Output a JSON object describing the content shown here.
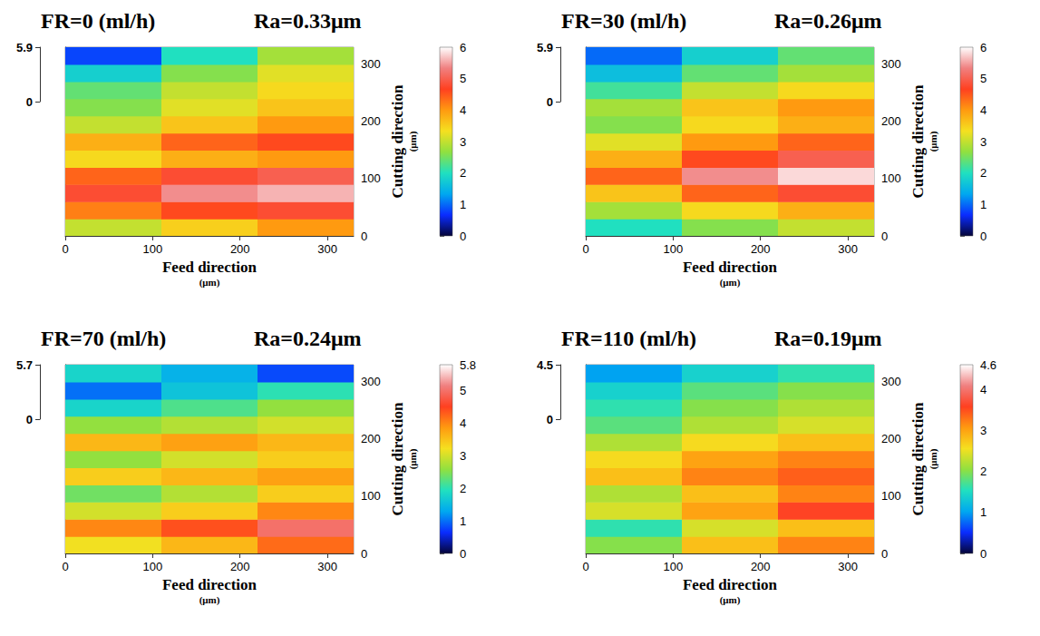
{
  "chart_data": [
    {
      "type": "heatmap",
      "title": "FR=0 (ml/h)",
      "subtitle": "Ra=0.33μm",
      "xlabel": "Feed direction",
      "xlabel_unit": "(μm)",
      "ylabel": "Cutting direction",
      "ylabel_unit": "(μm)",
      "xlim": [
        0,
        330
      ],
      "xticks": [
        0,
        100,
        200,
        300
      ],
      "ylim": [
        0,
        330
      ],
      "yticks": [
        0,
        100,
        200,
        300
      ],
      "x_bins": [
        0,
        110,
        220,
        330
      ],
      "y_bins": [
        0,
        30,
        60,
        90,
        120,
        150,
        180,
        210,
        240,
        270,
        300,
        330
      ],
      "values": [
        [
          3.0,
          3.5,
          4.0
        ],
        [
          4.2,
          4.6,
          4.8
        ],
        [
          4.8,
          5.4,
          5.6
        ],
        [
          4.4,
          4.8,
          5.0
        ],
        [
          3.4,
          3.8,
          4.0
        ],
        [
          3.8,
          4.4,
          4.6
        ],
        [
          3.0,
          3.6,
          4.0
        ],
        [
          2.6,
          3.2,
          3.6
        ],
        [
          2.4,
          3.0,
          3.4
        ],
        [
          1.8,
          2.6,
          3.2
        ],
        [
          0.8,
          2.0,
          2.8
        ]
      ],
      "zlim": [
        0,
        5.9
      ],
      "zticks": [
        0,
        5.9
      ],
      "colorbar_lim": [
        0,
        6
      ],
      "colorbar_ticks": [
        0,
        1,
        2,
        3,
        4,
        5,
        6
      ]
    },
    {
      "type": "heatmap",
      "title": "FR=30 (ml/h)",
      "subtitle": "Ra=0.26μm",
      "xlabel": "Feed direction",
      "xlabel_unit": "(μm)",
      "ylabel": "Cutting direction",
      "ylabel_unit": "(μm)",
      "xlim": [
        0,
        330
      ],
      "xticks": [
        0,
        100,
        200,
        300
      ],
      "ylim": [
        0,
        330
      ],
      "yticks": [
        0,
        100,
        200,
        300
      ],
      "x_bins": [
        0,
        110,
        220,
        330
      ],
      "y_bins": [
        0,
        30,
        60,
        90,
        120,
        150,
        180,
        210,
        240,
        270,
        300,
        330
      ],
      "values": [
        [
          2.0,
          2.6,
          3.0
        ],
        [
          2.8,
          3.4,
          3.8
        ],
        [
          3.6,
          4.4,
          4.8
        ],
        [
          4.4,
          5.4,
          5.8
        ],
        [
          3.8,
          4.6,
          5.0
        ],
        [
          3.2,
          4.0,
          4.4
        ],
        [
          2.6,
          3.4,
          3.8
        ],
        [
          2.8,
          3.6,
          4.0
        ],
        [
          2.2,
          3.0,
          3.4
        ],
        [
          1.6,
          2.4,
          2.8
        ],
        [
          1.0,
          1.8,
          2.4
        ]
      ],
      "zlim": [
        0,
        5.9
      ],
      "zticks": [
        0,
        5.9
      ],
      "colorbar_lim": [
        0,
        6
      ],
      "colorbar_ticks": [
        0,
        1,
        2,
        3,
        4,
        5,
        6
      ]
    },
    {
      "type": "heatmap",
      "title": "FR=70 (ml/h)",
      "subtitle": "Ra=0.24μm",
      "xlabel": "Feed direction",
      "xlabel_unit": "(μm)",
      "ylabel": "Cutting direction",
      "ylabel_unit": "(μm)",
      "xlim": [
        0,
        330
      ],
      "xticks": [
        0,
        100,
        200,
        300
      ],
      "ylim": [
        0,
        330
      ],
      "yticks": [
        0,
        100,
        200,
        300
      ],
      "x_bins": [
        0,
        110,
        220,
        330
      ],
      "y_bins": [
        0,
        30,
        60,
        90,
        120,
        150,
        180,
        210,
        240,
        270,
        300,
        330
      ],
      "values": [
        [
          3.2,
          3.6,
          4.2
        ],
        [
          4.0,
          4.4,
          5.0
        ],
        [
          3.0,
          3.4,
          4.0
        ],
        [
          2.4,
          2.8,
          3.4
        ],
        [
          3.4,
          3.6,
          3.8
        ],
        [
          2.6,
          3.0,
          3.4
        ],
        [
          3.6,
          3.8,
          3.6
        ],
        [
          2.6,
          2.8,
          3.0
        ],
        [
          1.8,
          2.2,
          2.6
        ],
        [
          1.0,
          1.6,
          2.0
        ],
        [
          1.8,
          1.4,
          0.8
        ]
      ],
      "zlim": [
        0,
        5.7
      ],
      "zticks": [
        0,
        5.7
      ],
      "colorbar_lim": [
        0,
        5.8
      ],
      "colorbar_ticks": [
        0,
        1,
        2,
        3,
        4,
        5,
        5.8
      ]
    },
    {
      "type": "heatmap",
      "title": "FR=110 (ml/h)",
      "subtitle": "Ra=0.19μm",
      "xlabel": "Feed direction",
      "xlabel_unit": "(μm)",
      "ylabel": "Cutting direction",
      "ylabel_unit": "(μm)",
      "xlim": [
        0,
        330
      ],
      "xticks": [
        0,
        100,
        200,
        300
      ],
      "ylim": [
        0,
        330
      ],
      "yticks": [
        0,
        100,
        200,
        300
      ],
      "x_bins": [
        0,
        110,
        220,
        330
      ],
      "y_bins": [
        0,
        30,
        60,
        90,
        120,
        150,
        180,
        210,
        240,
        270,
        300,
        330
      ],
      "values": [
        [
          2.0,
          2.8,
          3.2
        ],
        [
          1.6,
          2.4,
          2.8
        ],
        [
          2.4,
          3.0,
          3.6
        ],
        [
          2.2,
          2.8,
          3.2
        ],
        [
          2.8,
          3.2,
          3.4
        ],
        [
          2.6,
          3.0,
          3.2
        ],
        [
          2.2,
          2.6,
          2.8
        ],
        [
          1.8,
          2.2,
          2.4
        ],
        [
          1.6,
          2.0,
          2.2
        ],
        [
          1.4,
          1.8,
          2.0
        ],
        [
          1.0,
          1.4,
          1.6
        ]
      ],
      "zlim": [
        0,
        4.5
      ],
      "zticks": [
        0,
        4.5
      ],
      "colorbar_lim": [
        0,
        4.6
      ],
      "colorbar_ticks": [
        0,
        1,
        2,
        3,
        4,
        4.6
      ]
    }
  ]
}
